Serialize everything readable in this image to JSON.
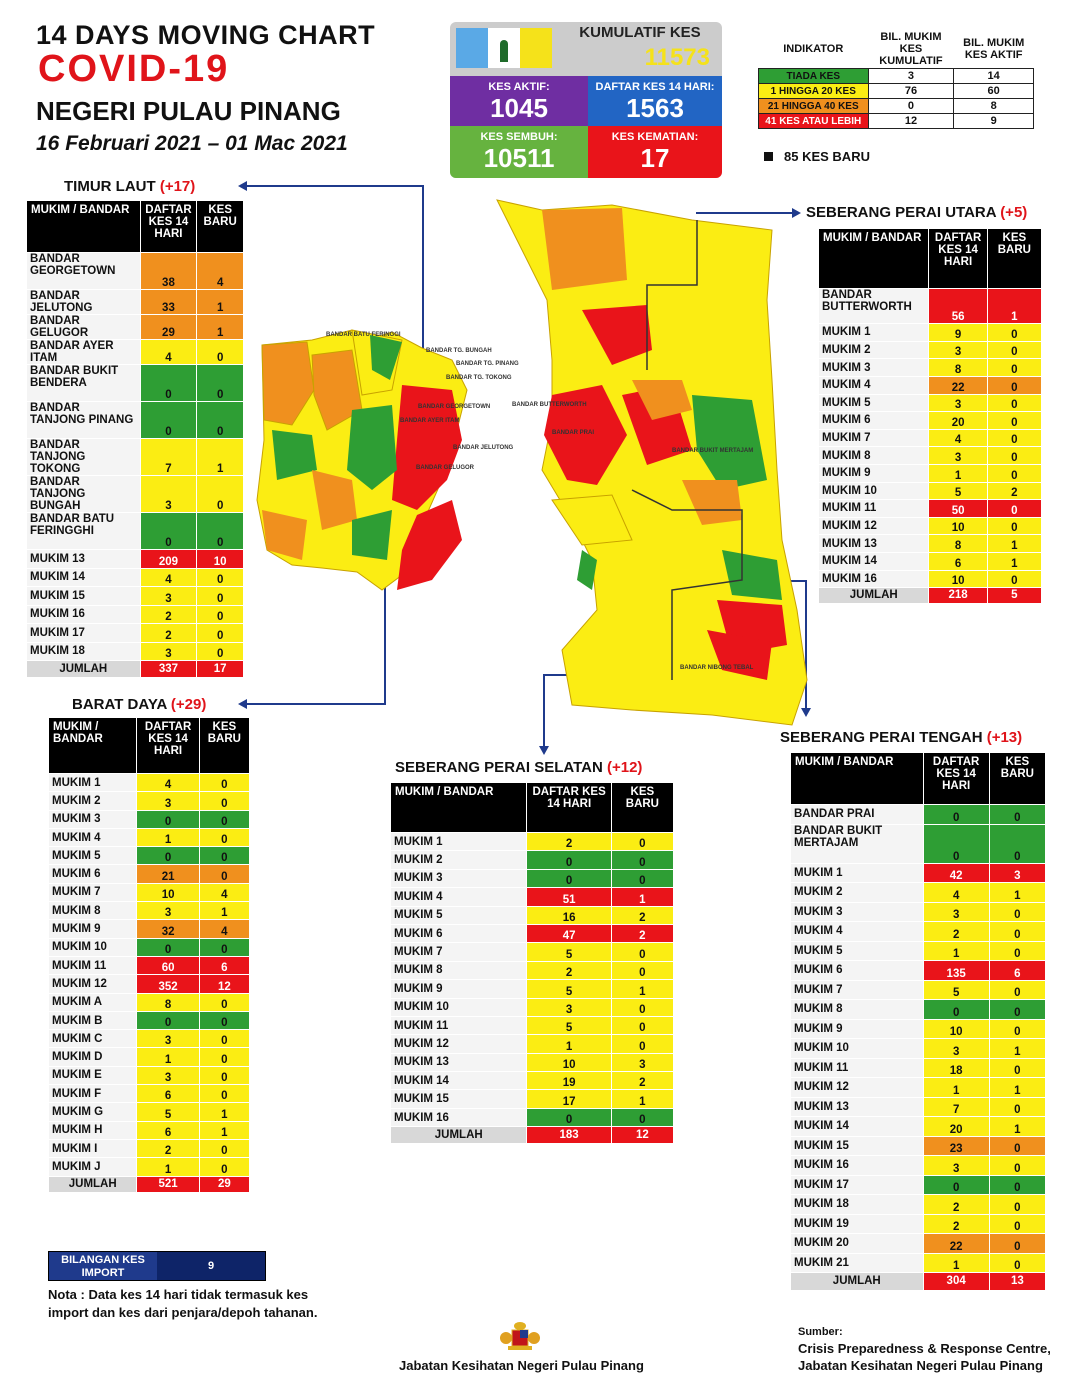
{
  "header": {
    "line1": "14  DAYS MOVING CHART",
    "line2": "COVID-19",
    "line3": "NEGERI PULAU PINANG",
    "line4": "16 Februari 2021 – 01 Mac 2021"
  },
  "summary": {
    "kumulatif_label": "KUMULATIF KES",
    "kumulatif": "11573",
    "aktif_label": "KES AKTIF:",
    "aktif": "1045",
    "daftar_label": "DAFTAR KES 14 HARI:",
    "daftar": "1563",
    "sembuh_label": "KES SEMBUH:",
    "sembuh": "10511",
    "kematian_label": "KES KEMATIAN:",
    "kematian": "17"
  },
  "indicator": {
    "h0": "INDIKATOR",
    "h1": "BIL. MUKIM KES KUMULATIF",
    "h2": "BIL. MUKIM KES AKTIF",
    "rows": [
      {
        "label": "TIADA KES",
        "a": "3",
        "b": "14",
        "color": "g"
      },
      {
        "label": "1 HINGGA 20 KES",
        "a": "76",
        "b": "60",
        "color": "y"
      },
      {
        "label": "21 HINGGA 40 KES",
        "a": "0",
        "b": "8",
        "color": "o"
      },
      {
        "label": "41 KES ATAU LEBIH",
        "a": "12",
        "b": "9",
        "color": "r"
      }
    ],
    "baru": "85 KES BARU"
  },
  "cols": {
    "mukim": "MUKIM / BANDAR",
    "daftar": "DAFTAR KES 14 HARI",
    "baru": "KES BARU",
    "jumlah": "JUMLAH"
  },
  "timur_laut": {
    "title": "TIMUR LAUT",
    "plus": "(+17)",
    "rows": [
      {
        "n": "BANDAR GEORGETOWN",
        "a": "38",
        "b": "4",
        "ca": "o",
        "cb": "o",
        "h": 2
      },
      {
        "n": "BANDAR JELUTONG",
        "a": "33",
        "b": "1",
        "ca": "o",
        "cb": "o",
        "h": 1
      },
      {
        "n": "BANDAR GELUGOR",
        "a": "29",
        "b": "1",
        "ca": "o",
        "cb": "o",
        "h": 1
      },
      {
        "n": "BANDAR AYER ITAM",
        "a": "4",
        "b": "0",
        "ca": "y",
        "cb": "y",
        "h": 1
      },
      {
        "n": "BANDAR BUKIT BENDERA",
        "a": "0",
        "b": "0",
        "ca": "g",
        "cb": "g",
        "h": 2
      },
      {
        "n": "BANDAR TANJONG PINANG",
        "a": "0",
        "b": "0",
        "ca": "g",
        "cb": "g",
        "h": 2
      },
      {
        "n": "BANDAR TANJONG TOKONG",
        "a": "7",
        "b": "1",
        "ca": "y",
        "cb": "y",
        "h": 2
      },
      {
        "n": "BANDAR TANJONG BUNGAH",
        "a": "3",
        "b": "0",
        "ca": "y",
        "cb": "y",
        "h": 2
      },
      {
        "n": "BANDAR BATU FERINGGHI",
        "a": "0",
        "b": "0",
        "ca": "g",
        "cb": "g",
        "h": 2
      },
      {
        "n": "MUKIM 13",
        "a": "209",
        "b": "10",
        "ca": "r",
        "cb": "r",
        "h": 1
      },
      {
        "n": "MUKIM 14",
        "a": "4",
        "b": "0",
        "ca": "y",
        "cb": "y",
        "h": 1
      },
      {
        "n": "MUKIM 15",
        "a": "3",
        "b": "0",
        "ca": "y",
        "cb": "y",
        "h": 1
      },
      {
        "n": "MUKIM 16",
        "a": "2",
        "b": "0",
        "ca": "y",
        "cb": "y",
        "h": 1
      },
      {
        "n": "MUKIM 17",
        "a": "2",
        "b": "0",
        "ca": "y",
        "cb": "y",
        "h": 1
      },
      {
        "n": "MUKIM 18",
        "a": "3",
        "b": "0",
        "ca": "y",
        "cb": "y",
        "h": 1
      }
    ],
    "total_a": "337",
    "total_b": "17"
  },
  "barat_daya": {
    "title": "BARAT DAYA",
    "plus": "(+29)",
    "rows": [
      {
        "n": "MUKIM 1",
        "a": "4",
        "b": "0",
        "ca": "y",
        "cb": "y"
      },
      {
        "n": "MUKIM 2",
        "a": "3",
        "b": "0",
        "ca": "y",
        "cb": "y"
      },
      {
        "n": "MUKIM 3",
        "a": "0",
        "b": "0",
        "ca": "g",
        "cb": "g"
      },
      {
        "n": "MUKIM 4",
        "a": "1",
        "b": "0",
        "ca": "y",
        "cb": "y"
      },
      {
        "n": "MUKIM 5",
        "a": "0",
        "b": "0",
        "ca": "g",
        "cb": "g"
      },
      {
        "n": "MUKIM 6",
        "a": "21",
        "b": "0",
        "ca": "o",
        "cb": "o"
      },
      {
        "n": "MUKIM 7",
        "a": "10",
        "b": "4",
        "ca": "y",
        "cb": "y"
      },
      {
        "n": "MUKIM 8",
        "a": "3",
        "b": "1",
        "ca": "y",
        "cb": "y"
      },
      {
        "n": "MUKIM 9",
        "a": "32",
        "b": "4",
        "ca": "o",
        "cb": "o"
      },
      {
        "n": "MUKIM 10",
        "a": "0",
        "b": "0",
        "ca": "g",
        "cb": "g"
      },
      {
        "n": "MUKIM 11",
        "a": "60",
        "b": "6",
        "ca": "r",
        "cb": "r"
      },
      {
        "n": "MUKIM 12",
        "a": "352",
        "b": "12",
        "ca": "r",
        "cb": "r"
      },
      {
        "n": "MUKIM A",
        "a": "8",
        "b": "0",
        "ca": "y",
        "cb": "y"
      },
      {
        "n": "MUKIM B",
        "a": "0",
        "b": "0",
        "ca": "g",
        "cb": "g"
      },
      {
        "n": "MUKIM C",
        "a": "3",
        "b": "0",
        "ca": "y",
        "cb": "y"
      },
      {
        "n": "MUKIM D",
        "a": "1",
        "b": "0",
        "ca": "y",
        "cb": "y"
      },
      {
        "n": "MUKIM E",
        "a": "3",
        "b": "0",
        "ca": "y",
        "cb": "y"
      },
      {
        "n": "MUKIM F",
        "a": "6",
        "b": "0",
        "ca": "y",
        "cb": "y"
      },
      {
        "n": "MUKIM G",
        "a": "5",
        "b": "1",
        "ca": "y",
        "cb": "y"
      },
      {
        "n": "MUKIM H",
        "a": "6",
        "b": "1",
        "ca": "y",
        "cb": "y"
      },
      {
        "n": "MUKIM I",
        "a": "2",
        "b": "0",
        "ca": "y",
        "cb": "y"
      },
      {
        "n": "MUKIM J",
        "a": "1",
        "b": "0",
        "ca": "y",
        "cb": "y"
      }
    ],
    "total_a": "521",
    "total_b": "29"
  },
  "spu": {
    "title": "SEBERANG PERAI UTARA",
    "plus": "(+5)",
    "rows": [
      {
        "n": "BANDAR BUTTERWORTH",
        "a": "56",
        "b": "1",
        "ca": "r",
        "cb": "r",
        "h": 2
      },
      {
        "n": "MUKIM 1",
        "a": "9",
        "b": "0",
        "ca": "y",
        "cb": "y",
        "h": 1
      },
      {
        "n": "MUKIM 2",
        "a": "3",
        "b": "0",
        "ca": "y",
        "cb": "y",
        "h": 1
      },
      {
        "n": "MUKIM 3",
        "a": "8",
        "b": "0",
        "ca": "y",
        "cb": "y",
        "h": 1
      },
      {
        "n": "MUKIM 4",
        "a": "22",
        "b": "0",
        "ca": "o",
        "cb": "o",
        "h": 1
      },
      {
        "n": "MUKIM 5",
        "a": "3",
        "b": "0",
        "ca": "y",
        "cb": "y",
        "h": 1
      },
      {
        "n": "MUKIM 6",
        "a": "20",
        "b": "0",
        "ca": "y",
        "cb": "y",
        "h": 1
      },
      {
        "n": "MUKIM 7",
        "a": "4",
        "b": "0",
        "ca": "y",
        "cb": "y",
        "h": 1
      },
      {
        "n": "MUKIM 8",
        "a": "3",
        "b": "0",
        "ca": "y",
        "cb": "y",
        "h": 1
      },
      {
        "n": "MUKIM 9",
        "a": "1",
        "b": "0",
        "ca": "y",
        "cb": "y",
        "h": 1
      },
      {
        "n": "MUKIM 10",
        "a": "5",
        "b": "2",
        "ca": "y",
        "cb": "y",
        "h": 1
      },
      {
        "n": "MUKIM 11",
        "a": "50",
        "b": "0",
        "ca": "r",
        "cb": "r",
        "h": 1
      },
      {
        "n": "MUKIM 12",
        "a": "10",
        "b": "0",
        "ca": "y",
        "cb": "y",
        "h": 1
      },
      {
        "n": "MUKIM 13",
        "a": "8",
        "b": "1",
        "ca": "y",
        "cb": "y",
        "h": 1
      },
      {
        "n": "MUKIM 14",
        "a": "6",
        "b": "1",
        "ca": "y",
        "cb": "y",
        "h": 1
      },
      {
        "n": "MUKIM 16",
        "a": "10",
        "b": "0",
        "ca": "y",
        "cb": "y",
        "h": 1
      }
    ],
    "total_a": "218",
    "total_b": "5"
  },
  "sps": {
    "title": "SEBERANG PERAI SELATAN",
    "plus": "(+12)",
    "rows": [
      {
        "n": "MUKIM 1",
        "a": "2",
        "b": "0",
        "ca": "y",
        "cb": "y"
      },
      {
        "n": "MUKIM 2",
        "a": "0",
        "b": "0",
        "ca": "g",
        "cb": "g"
      },
      {
        "n": "MUKIM 3",
        "a": "0",
        "b": "0",
        "ca": "g",
        "cb": "g"
      },
      {
        "n": "MUKIM 4",
        "a": "51",
        "b": "1",
        "ca": "r",
        "cb": "r"
      },
      {
        "n": "MUKIM 5",
        "a": "16",
        "b": "2",
        "ca": "y",
        "cb": "y"
      },
      {
        "n": "MUKIM 6",
        "a": "47",
        "b": "2",
        "ca": "r",
        "cb": "r"
      },
      {
        "n": "MUKIM 7",
        "a": "5",
        "b": "0",
        "ca": "y",
        "cb": "y"
      },
      {
        "n": "MUKIM 8",
        "a": "2",
        "b": "0",
        "ca": "y",
        "cb": "y"
      },
      {
        "n": "MUKIM 9",
        "a": "5",
        "b": "1",
        "ca": "y",
        "cb": "y"
      },
      {
        "n": "MUKIM 10",
        "a": "3",
        "b": "0",
        "ca": "y",
        "cb": "y"
      },
      {
        "n": "MUKIM 11",
        "a": "5",
        "b": "0",
        "ca": "y",
        "cb": "y"
      },
      {
        "n": "MUKIM 12",
        "a": "1",
        "b": "0",
        "ca": "y",
        "cb": "y"
      },
      {
        "n": "MUKIM 13",
        "a": "10",
        "b": "3",
        "ca": "y",
        "cb": "y"
      },
      {
        "n": "MUKIM 14",
        "a": "19",
        "b": "2",
        "ca": "y",
        "cb": "y"
      },
      {
        "n": "MUKIM 15",
        "a": "17",
        "b": "1",
        "ca": "y",
        "cb": "y"
      },
      {
        "n": "MUKIM 16",
        "a": "0",
        "b": "0",
        "ca": "g",
        "cb": "g"
      }
    ],
    "total_a": "183",
    "total_b": "12"
  },
  "spt": {
    "title": "SEBERANG PERAI TENGAH",
    "plus": "(+13)",
    "rows": [
      {
        "n": "BANDAR PRAI",
        "a": "0",
        "b": "0",
        "ca": "g",
        "cb": "g",
        "h": 1
      },
      {
        "n": "BANDAR BUKIT MERTAJAM",
        "a": "0",
        "b": "0",
        "ca": "g",
        "cb": "g",
        "h": 2
      },
      {
        "n": "MUKIM 1",
        "a": "42",
        "b": "3",
        "ca": "r",
        "cb": "r",
        "h": 1
      },
      {
        "n": "MUKIM 2",
        "a": "4",
        "b": "1",
        "ca": "y",
        "cb": "y",
        "h": 1
      },
      {
        "n": "MUKIM 3",
        "a": "3",
        "b": "0",
        "ca": "y",
        "cb": "y",
        "h": 1
      },
      {
        "n": "MUKIM 4",
        "a": "2",
        "b": "0",
        "ca": "y",
        "cb": "y",
        "h": 1
      },
      {
        "n": "MUKIM 5",
        "a": "1",
        "b": "0",
        "ca": "y",
        "cb": "y",
        "h": 1
      },
      {
        "n": "MUKIM 6",
        "a": "135",
        "b": "6",
        "ca": "r",
        "cb": "r",
        "h": 1
      },
      {
        "n": "MUKIM 7",
        "a": "5",
        "b": "0",
        "ca": "y",
        "cb": "y",
        "h": 1
      },
      {
        "n": "MUKIM 8",
        "a": "0",
        "b": "0",
        "ca": "g",
        "cb": "g",
        "h": 1
      },
      {
        "n": "MUKIM 9",
        "a": "10",
        "b": "0",
        "ca": "y",
        "cb": "y",
        "h": 1
      },
      {
        "n": "MUKIM 10",
        "a": "3",
        "b": "1",
        "ca": "y",
        "cb": "y",
        "h": 1
      },
      {
        "n": "MUKIM 11",
        "a": "18",
        "b": "0",
        "ca": "y",
        "cb": "y",
        "h": 1
      },
      {
        "n": "MUKIM 12",
        "a": "1",
        "b": "1",
        "ca": "y",
        "cb": "y",
        "h": 1
      },
      {
        "n": "MUKIM 13",
        "a": "7",
        "b": "0",
        "ca": "y",
        "cb": "y",
        "h": 1
      },
      {
        "n": "MUKIM 14",
        "a": "20",
        "b": "1",
        "ca": "y",
        "cb": "y",
        "h": 1
      },
      {
        "n": "MUKIM 15",
        "a": "23",
        "b": "0",
        "ca": "o",
        "cb": "o",
        "h": 1
      },
      {
        "n": "MUKIM 16",
        "a": "3",
        "b": "0",
        "ca": "y",
        "cb": "y",
        "h": 1
      },
      {
        "n": "MUKIM 17",
        "a": "0",
        "b": "0",
        "ca": "g",
        "cb": "g",
        "h": 1
      },
      {
        "n": "MUKIM 18",
        "a": "2",
        "b": "0",
        "ca": "y",
        "cb": "y",
        "h": 1
      },
      {
        "n": "MUKIM 19",
        "a": "2",
        "b": "0",
        "ca": "y",
        "cb": "y",
        "h": 1
      },
      {
        "n": "MUKIM 20",
        "a": "22",
        "b": "0",
        "ca": "o",
        "cb": "o",
        "h": 1
      },
      {
        "n": "MUKIM 21",
        "a": "1",
        "b": "0",
        "ca": "y",
        "cb": "y",
        "h": 1
      }
    ],
    "total_a": "304",
    "total_b": "13"
  },
  "import": {
    "label": "BILANGAN KES IMPORT",
    "value": "9"
  },
  "note": "Nota : Data kes 14 hari tidak termasuk kes import dan kes dari penjara/depoh tahanan.",
  "footer": {
    "dept": "Jabatan Kesihatan Negeri Pulau Pinang",
    "sumber": "Sumber:",
    "src1": "Crisis Preparedness & Response Centre,",
    "src2": "Jabatan Kesihatan Negeri Pulau Pinang"
  },
  "map_labels": {
    "island": [
      "BANDAR BATU FERINGGI",
      "BANDAR TG. BUNGAH",
      "BANDAR TG. PINANG",
      "BANDAR TG. TOKONG",
      "BANDAR GEORGETOWN",
      "BANDAR AYER ITAM",
      "BANDAR JELUTONG",
      "BANDAR GELUGOR"
    ],
    "main": [
      "BANDAR BUTTERWORTH",
      "BANDAR PRAI",
      "BANDAR BUKIT MERTAJAM",
      "BANDAR NIBONG TEBAL"
    ]
  },
  "colors": {
    "green": "#2e9e34",
    "yellow": "#fbed13",
    "orange": "#f0901e",
    "red": "#e9141a",
    "navy": "#1f3a8c"
  }
}
